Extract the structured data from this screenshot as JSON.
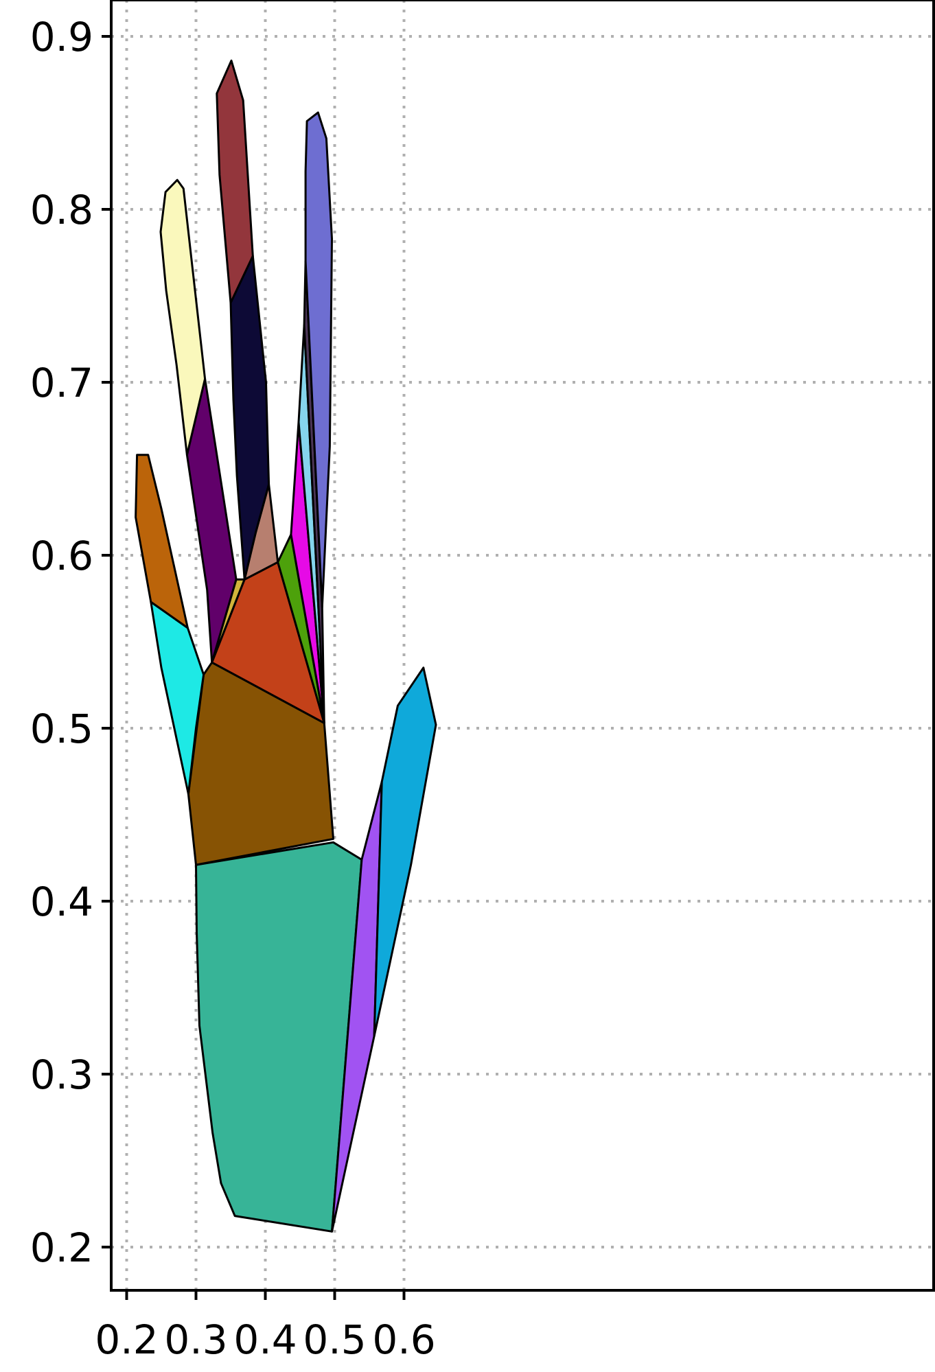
{
  "chart_data": {
    "type": "polygon_map",
    "title": "",
    "xlabel": "",
    "ylabel": "",
    "xlim": [
      0.195,
      0.662
    ],
    "ylim": [
      0.185,
      0.92
    ],
    "grid": true,
    "grid_style": "dotted",
    "x_ticks": [
      "0.2",
      "0.3",
      "0.4",
      "0.5",
      "0.6"
    ],
    "y_ticks": [
      "0.2",
      "0.3",
      "0.4",
      "0.5",
      "0.6",
      "0.7",
      "0.8",
      "0.9"
    ],
    "regions": [
      {
        "color": "#37b497",
        "points": [
          [
            0.3,
            0.421
          ],
          [
            0.498,
            0.434
          ],
          [
            0.539,
            0.424
          ],
          [
            0.496,
            0.209
          ],
          [
            0.356,
            0.218
          ],
          [
            0.336,
            0.237
          ],
          [
            0.324,
            0.266
          ],
          [
            0.305,
            0.328
          ],
          [
            0.301,
            0.382
          ]
        ]
      },
      {
        "color": "#875304",
        "points": [
          [
            0.289,
            0.462
          ],
          [
            0.311,
            0.531
          ],
          [
            0.323,
            0.538
          ],
          [
            0.485,
            0.503
          ],
          [
            0.498,
            0.436
          ],
          [
            0.3,
            0.421
          ]
        ]
      },
      {
        "color": "#1ee9e5",
        "points": [
          [
            0.235,
            0.573
          ],
          [
            0.288,
            0.558
          ],
          [
            0.311,
            0.531
          ],
          [
            0.3,
            0.5
          ],
          [
            0.289,
            0.462
          ],
          [
            0.25,
            0.535
          ]
        ]
      },
      {
        "color": "#bb640a",
        "points": [
          [
            0.215,
            0.658
          ],
          [
            0.231,
            0.658
          ],
          [
            0.25,
            0.627
          ],
          [
            0.288,
            0.558
          ],
          [
            0.235,
            0.573
          ],
          [
            0.213,
            0.622
          ]
        ]
      },
      {
        "color": "#61006a",
        "points": [
          [
            0.323,
            0.538
          ],
          [
            0.358,
            0.586
          ],
          [
            0.313,
            0.702
          ],
          [
            0.287,
            0.658
          ],
          [
            0.316,
            0.58
          ]
        ]
      },
      {
        "color": "#faf8bc",
        "points": [
          [
            0.287,
            0.658
          ],
          [
            0.313,
            0.702
          ],
          [
            0.282,
            0.812
          ],
          [
            0.273,
            0.817
          ],
          [
            0.256,
            0.81
          ],
          [
            0.249,
            0.787
          ],
          [
            0.257,
            0.753
          ],
          [
            0.272,
            0.71
          ]
        ]
      },
      {
        "color": "#d1b43b",
        "points": [
          [
            0.323,
            0.538
          ],
          [
            0.358,
            0.586
          ],
          [
            0.37,
            0.586
          ]
        ]
      },
      {
        "color": "#c34119",
        "points": [
          [
            0.323,
            0.538
          ],
          [
            0.37,
            0.586
          ],
          [
            0.418,
            0.596
          ],
          [
            0.485,
            0.503
          ]
        ]
      },
      {
        "color": "#b77f6f",
        "points": [
          [
            0.37,
            0.586
          ],
          [
            0.418,
            0.596
          ],
          [
            0.405,
            0.641
          ],
          [
            0.386,
            0.613
          ]
        ]
      },
      {
        "color": "#0d0a36",
        "points": [
          [
            0.37,
            0.586
          ],
          [
            0.386,
            0.613
          ],
          [
            0.405,
            0.641
          ],
          [
            0.401,
            0.7
          ],
          [
            0.397,
            0.715
          ],
          [
            0.382,
            0.773
          ],
          [
            0.35,
            0.746
          ],
          [
            0.354,
            0.69
          ],
          [
            0.359,
            0.646
          ]
        ]
      },
      {
        "color": "#93363c",
        "points": [
          [
            0.35,
            0.746
          ],
          [
            0.382,
            0.773
          ],
          [
            0.368,
            0.863
          ],
          [
            0.351,
            0.886
          ],
          [
            0.33,
            0.867
          ],
          [
            0.334,
            0.82
          ]
        ]
      },
      {
        "color": "#4da10b",
        "points": [
          [
            0.418,
            0.596
          ],
          [
            0.437,
            0.612
          ],
          [
            0.485,
            0.503
          ]
        ]
      },
      {
        "color": "#e60ae6",
        "points": [
          [
            0.437,
            0.612
          ],
          [
            0.448,
            0.677
          ],
          [
            0.485,
            0.503
          ]
        ]
      },
      {
        "color": "#85d5ed",
        "points": [
          [
            0.448,
            0.677
          ],
          [
            0.456,
            0.733
          ],
          [
            0.485,
            0.503
          ]
        ]
      },
      {
        "color": "#4c3657",
        "points": [
          [
            0.456,
            0.733
          ],
          [
            0.458,
            0.77
          ],
          [
            0.482,
            0.57
          ],
          [
            0.485,
            0.503
          ]
        ]
      },
      {
        "color": "#6e6ed1",
        "points": [
          [
            0.458,
            0.77
          ],
          [
            0.458,
            0.822
          ],
          [
            0.46,
            0.851
          ],
          [
            0.476,
            0.856
          ],
          [
            0.488,
            0.841
          ],
          [
            0.496,
            0.783
          ],
          [
            0.493,
            0.663
          ],
          [
            0.482,
            0.57
          ]
        ]
      },
      {
        "color": "#a153f2",
        "points": [
          [
            0.539,
            0.424
          ],
          [
            0.568,
            0.469
          ],
          [
            0.557,
            0.322
          ],
          [
            0.496,
            0.209
          ]
        ]
      },
      {
        "color": "#0fa9da",
        "points": [
          [
            0.568,
            0.469
          ],
          [
            0.591,
            0.513
          ],
          [
            0.628,
            0.535
          ],
          [
            0.646,
            0.502
          ],
          [
            0.61,
            0.421
          ],
          [
            0.557,
            0.322
          ]
        ]
      }
    ]
  }
}
